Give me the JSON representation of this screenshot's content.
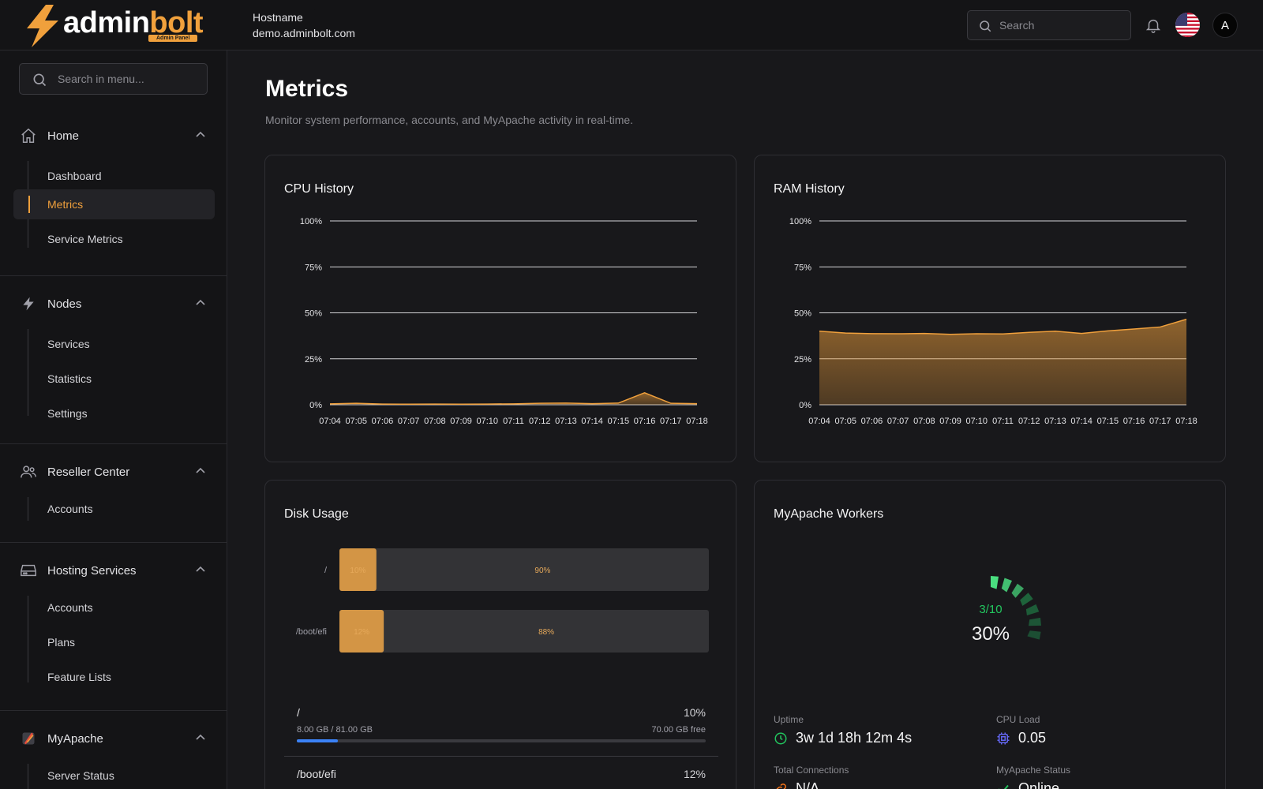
{
  "brand": {
    "name_part1": "admin",
    "name_part2": "bolt",
    "badge": "Admin Panel",
    "accent": "#f0a03c"
  },
  "header": {
    "host_label": "Hostname",
    "host_value": "demo.adminbolt.com",
    "search_placeholder": "Search",
    "avatar_initial": "A"
  },
  "sidebar": {
    "search_placeholder": "Search in menu...",
    "groups": [
      {
        "label": "Home",
        "icon": "home-icon",
        "items": [
          "Dashboard",
          "Metrics",
          "Service Metrics"
        ],
        "active": "Metrics"
      },
      {
        "label": "Nodes",
        "icon": "bolt-icon",
        "items": [
          "Services",
          "Statistics",
          "Settings"
        ]
      },
      {
        "label": "Reseller Center",
        "icon": "users-icon",
        "items": [
          "Accounts"
        ]
      },
      {
        "label": "Hosting Services",
        "icon": "server-icon",
        "items": [
          "Accounts",
          "Plans",
          "Feature Lists"
        ]
      },
      {
        "label": "MyApache",
        "icon": "feather-icon",
        "items": [
          "Server Status"
        ]
      }
    ]
  },
  "page": {
    "title": "Metrics",
    "subtitle": "Monitor system performance, accounts, and MyApache activity in real-time."
  },
  "cpu_card": {
    "title": "CPU History"
  },
  "ram_card": {
    "title": "RAM History"
  },
  "disk_card": {
    "title": "Disk Usage",
    "bars": [
      {
        "label": "/",
        "used_pct": 10,
        "free_pct": 90,
        "used_label": "10%",
        "free_label": "90%"
      },
      {
        "label": "/boot/efi",
        "used_pct": 12,
        "free_pct": 88,
        "used_label": "12%",
        "free_label": "88%"
      }
    ],
    "list": [
      {
        "name": "/",
        "pct": "10%",
        "used": "8.00 GB / 81.00 GB",
        "free": "70.00 GB free",
        "fill": 0.1
      },
      {
        "name": "/boot/efi",
        "pct": "12%"
      }
    ]
  },
  "workers_card": {
    "title": "MyApache Workers",
    "ratio": "3/10",
    "percent": "30%",
    "active": 3,
    "total": 10,
    "stats": {
      "uptime_label": "Uptime",
      "uptime_value": "3w 1d 18h 12m 4s",
      "cpu_label": "CPU Load",
      "cpu_value": "0.05",
      "conn_label": "Total Connections",
      "conn_value": "N/A",
      "status_label": "MyApache Status",
      "status_value": "Online"
    }
  },
  "chart_data": [
    {
      "type": "area",
      "title": "CPU History",
      "x": [
        "07:04",
        "07:05",
        "07:06",
        "07:07",
        "07:08",
        "07:09",
        "07:10",
        "07:11",
        "07:12",
        "07:13",
        "07:14",
        "07:15",
        "07:16",
        "07:17",
        "07:18"
      ],
      "series": [
        {
          "values": [
            0.5,
            0.8,
            0.4,
            0.3,
            0.4,
            0.3,
            0.4,
            0.5,
            0.8,
            0.9,
            0.6,
            0.9,
            6.5,
            0.8,
            0.6
          ]
        }
      ],
      "ylim": [
        0,
        100
      ],
      "yticks": [
        "0%",
        "25%",
        "50%",
        "75%",
        "100%"
      ],
      "grid": true,
      "color": "#f0a03c"
    },
    {
      "type": "area",
      "title": "RAM History",
      "x": [
        "07:04",
        "07:05",
        "07:06",
        "07:07",
        "07:08",
        "07:09",
        "07:10",
        "07:11",
        "07:12",
        "07:13",
        "07:14",
        "07:15",
        "07:16",
        "07:17",
        "07:18"
      ],
      "series": [
        {
          "values": [
            40,
            39,
            38.7,
            38.6,
            38.8,
            38.3,
            38.6,
            38.5,
            39.4,
            40,
            38.8,
            40.2,
            41.2,
            42.3,
            46.5
          ]
        }
      ],
      "ylim": [
        0,
        100
      ],
      "yticks": [
        "0%",
        "25%",
        "50%",
        "75%",
        "100%"
      ],
      "grid": true,
      "color": "#f0a03c"
    }
  ]
}
